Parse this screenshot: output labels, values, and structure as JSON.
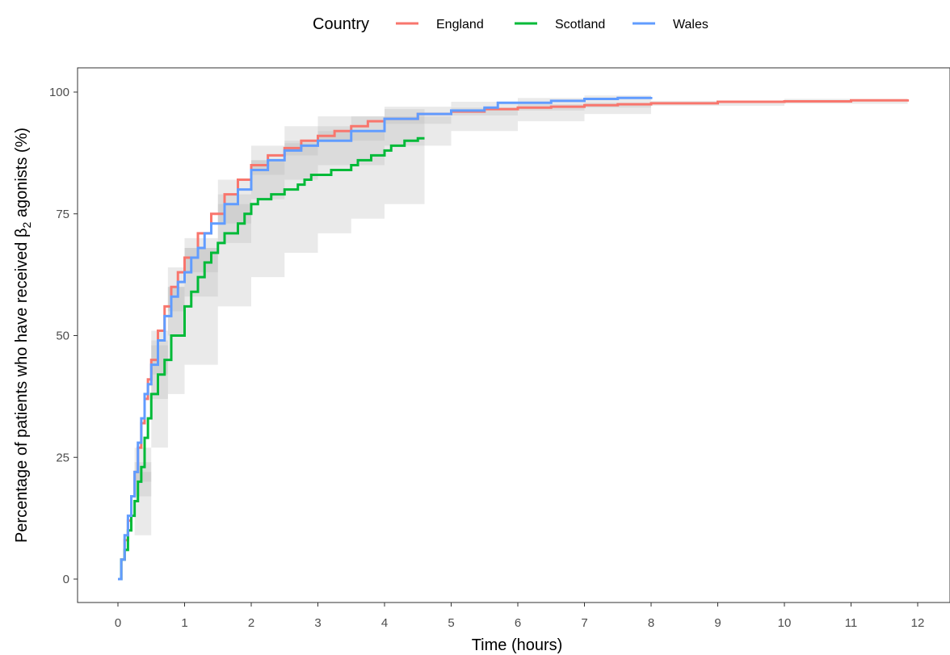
{
  "chart_data": {
    "type": "line",
    "chart_subtype": "step",
    "xlabel": "Time (hours)",
    "ylabel_parts": [
      "Percentage of patients who have received ",
      "β",
      "2",
      " agonists (%)"
    ],
    "xlim": [
      0,
      12
    ],
    "ylim": [
      0,
      100
    ],
    "x_ticks": [
      0,
      1,
      2,
      3,
      4,
      5,
      6,
      7,
      8,
      9,
      10,
      11,
      12
    ],
    "y_ticks": [
      0,
      25,
      50,
      75,
      100
    ],
    "grid": false,
    "legend": {
      "title": "Country",
      "position": "top",
      "labels": [
        "England",
        "Scotland",
        "Wales"
      ]
    },
    "series": [
      {
        "name": "England",
        "color": "#F8766D",
        "x": [
          0,
          0.05,
          0.1,
          0.15,
          0.2,
          0.25,
          0.3,
          0.35,
          0.4,
          0.45,
          0.5,
          0.6,
          0.7,
          0.8,
          0.9,
          1.0,
          1.2,
          1.4,
          1.6,
          1.8,
          2.0,
          2.25,
          2.5,
          2.75,
          3.0,
          3.25,
          3.5,
          3.75,
          4.0,
          4.5,
          5.0,
          5.5,
          6.0,
          6.5,
          7.0,
          7.5,
          8.0,
          9.0,
          10.0,
          11.0,
          11.85
        ],
        "y": [
          0,
          4,
          8,
          12,
          17,
          22,
          27,
          32,
          37,
          41,
          45,
          51,
          56,
          60,
          63,
          66,
          71,
          75,
          79,
          82,
          85,
          87,
          88.5,
          90,
          91,
          92,
          93,
          94,
          94.5,
          95.5,
          96,
          96.5,
          96.8,
          97,
          97.3,
          97.5,
          97.7,
          98,
          98.1,
          98.3,
          98.5
        ]
      },
      {
        "name": "Scotland",
        "color": "#00BA38",
        "x": [
          0,
          0.05,
          0.1,
          0.15,
          0.2,
          0.25,
          0.3,
          0.35,
          0.4,
          0.45,
          0.5,
          0.6,
          0.7,
          0.8,
          1.0,
          1.1,
          1.2,
          1.3,
          1.4,
          1.5,
          1.6,
          1.8,
          1.9,
          2.0,
          2.1,
          2.3,
          2.5,
          2.7,
          2.8,
          2.9,
          3.0,
          3.2,
          3.5,
          3.6,
          3.7,
          3.8,
          4.0,
          4.1,
          4.2,
          4.3,
          4.5,
          4.6
        ],
        "y": [
          0,
          4,
          6,
          10,
          13,
          16,
          20,
          23,
          29,
          33,
          38,
          42,
          45,
          50,
          56,
          59,
          62,
          65,
          67,
          69,
          71,
          73,
          75,
          77,
          78,
          79,
          80,
          81,
          82,
          83,
          83,
          84,
          85,
          86,
          86,
          87,
          88,
          89,
          89,
          90,
          90.5,
          90.5
        ]
      },
      {
        "name": "Wales",
        "color": "#619CFF",
        "x": [
          0,
          0.05,
          0.1,
          0.15,
          0.2,
          0.25,
          0.3,
          0.35,
          0.4,
          0.45,
          0.5,
          0.6,
          0.7,
          0.8,
          0.9,
          1.0,
          1.1,
          1.2,
          1.3,
          1.4,
          1.6,
          1.8,
          2.0,
          2.25,
          2.5,
          2.75,
          3.0,
          3.5,
          4.0,
          4.5,
          5.0,
          5.5,
          5.7,
          6.5,
          7.0,
          7.5,
          8.0
        ],
        "y": [
          0,
          4,
          9,
          13,
          17,
          22,
          28,
          33,
          38,
          40,
          44,
          49,
          54,
          58,
          61,
          63,
          66,
          68,
          71,
          73,
          77,
          80,
          84,
          86,
          88,
          89,
          90,
          92,
          94.5,
          95.5,
          96.2,
          96.8,
          97.8,
          98.2,
          98.6,
          98.8,
          99
        ]
      }
    ],
    "confidence_bands": [
      {
        "series": "England",
        "x": [
          0,
          0.25,
          0.5,
          0.75,
          1.0,
          1.5,
          2.0,
          2.5,
          3.0,
          4.0,
          5.0,
          6.0,
          7.0,
          8.0,
          10.0,
          11.85
        ],
        "lower": [
          0,
          20,
          42,
          55,
          63,
          73,
          83,
          87,
          90,
          93.5,
          95.2,
          96.2,
          96.8,
          97.2,
          97.6,
          97.9
        ],
        "upper": [
          0,
          24,
          48,
          60,
          68,
          77,
          86,
          89.5,
          92,
          95,
          96.8,
          97.5,
          97.8,
          98.2,
          98.6,
          99
        ]
      },
      {
        "series": "Scotland",
        "x": [
          0,
          0.25,
          0.5,
          0.75,
          1.0,
          1.5,
          2.0,
          2.5,
          3.0,
          3.5,
          4.0,
          4.6
        ],
        "lower": [
          0,
          9,
          27,
          38,
          44,
          56,
          62,
          67,
          71,
          74,
          77,
          84
        ],
        "upper": [
          0,
          22,
          49,
          60,
          68,
          79,
          86,
          90,
          93,
          95,
          96.5,
          97
        ]
      },
      {
        "series": "Wales",
        "x": [
          0,
          0.25,
          0.5,
          0.75,
          1.0,
          1.5,
          2.0,
          2.5,
          3.0,
          4.0,
          5.0,
          6.0,
          7.0,
          8.0
        ],
        "lower": [
          0,
          17,
          37,
          50,
          58,
          69,
          78,
          82,
          85,
          89,
          92,
          94,
          95.5,
          96
        ],
        "upper": [
          0,
          27,
          51,
          64,
          70,
          82,
          89,
          93,
          95,
          97,
          98,
          98.8,
          99.3,
          99.6
        ]
      }
    ]
  }
}
